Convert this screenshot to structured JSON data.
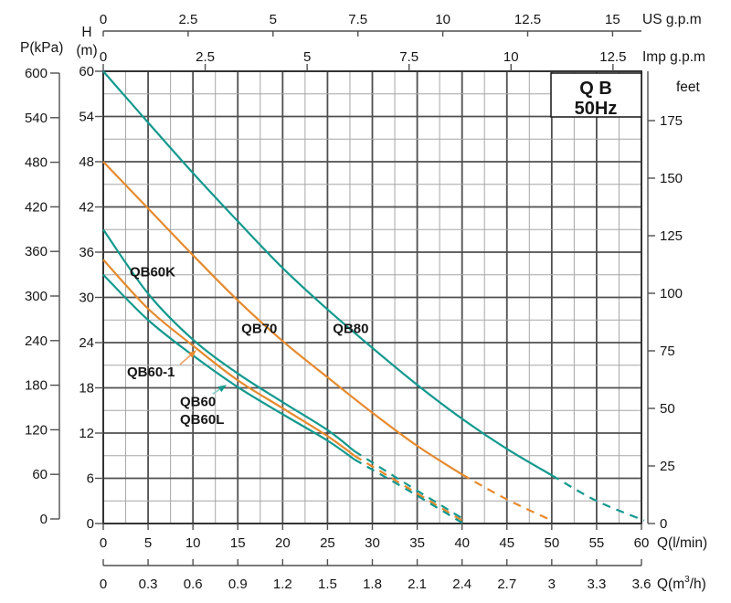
{
  "title": {
    "line1": "Q B",
    "line2": "50Hz"
  },
  "axes": {
    "us_gpm": {
      "title": "US g.p.m",
      "ticks": [
        0,
        2.5,
        5,
        7.5,
        10,
        12.5,
        15
      ]
    },
    "imp_gpm": {
      "title": "Imp g.p.m",
      "ticks": [
        0,
        2.5,
        5,
        7.5,
        10,
        12.5
      ]
    },
    "pressure_kpa": {
      "title": "P(kPa)",
      "ticks": [
        600,
        540,
        480,
        420,
        360,
        300,
        240,
        180,
        120,
        60,
        0
      ]
    },
    "head_m": {
      "title_letter": "H",
      "title_unit": "(m)",
      "ticks": [
        60,
        54,
        48,
        42,
        36,
        30,
        24,
        18,
        12,
        6,
        0
      ]
    },
    "feet": {
      "title": "feet",
      "ticks": [
        175,
        150,
        125,
        100,
        75,
        50,
        25,
        0
      ]
    },
    "flow_lmin": {
      "title": "Q(l/min)",
      "ticks": [
        0,
        5,
        10,
        15,
        20,
        25,
        30,
        35,
        40,
        45,
        50,
        55,
        60
      ]
    },
    "flow_m3h": {
      "title_parts": [
        "Q(m",
        "3",
        "/h)"
      ],
      "ticks": [
        "0",
        "0.3",
        "0.6",
        "0.9",
        "1.2",
        "1.5",
        "1.8",
        "2.1",
        "2.4",
        "2.7",
        "3",
        "3.3",
        "3.6"
      ]
    }
  },
  "chart_data": {
    "type": "line",
    "title": "QB series pump curves, 50Hz",
    "xlabel": "Q (l/min)",
    "ylabel": "H (m)",
    "x_range": [
      0,
      60
    ],
    "y_range": [
      0,
      60
    ],
    "grid": {
      "x_minor": 2.5,
      "x_major": 5,
      "y_minor": 3,
      "y_major": 6
    },
    "colors": {
      "teal": "#13998E",
      "orange": "#E68A2D",
      "grid_major": "#4F4F4F",
      "grid_minor": "#A6A6A6",
      "text": "#151515"
    },
    "unit_conversions": {
      "us_gpm_to_lmin": 3.7854,
      "imp_gpm_to_lmin": 4.5461,
      "m3h_to_lmin": 16.6667
    },
    "series": [
      {
        "name": "QB80",
        "color": "#13998E",
        "solid": [
          [
            0,
            60
          ],
          [
            5,
            53.2
          ],
          [
            10,
            46.5
          ],
          [
            15,
            40.1
          ],
          [
            20,
            33.9
          ],
          [
            25,
            28.4
          ],
          [
            30,
            23.3
          ],
          [
            35,
            18.4
          ],
          [
            40,
            13.9
          ],
          [
            45,
            9.9
          ],
          [
            50,
            6.4
          ]
        ],
        "dashed": [
          [
            50,
            6.4
          ],
          [
            55,
            3.0
          ],
          [
            60.3,
            0.4
          ]
        ]
      },
      {
        "name": "QB70",
        "color": "#E68A2D",
        "solid": [
          [
            0,
            48
          ],
          [
            5,
            41.8
          ],
          [
            10,
            35.6
          ],
          [
            15,
            29.6
          ],
          [
            20,
            24.2
          ],
          [
            25,
            19.4
          ],
          [
            30,
            14.7
          ],
          [
            35,
            10.3
          ],
          [
            40,
            6.5
          ]
        ],
        "dashed": [
          [
            40,
            6.5
          ],
          [
            45,
            3.2
          ],
          [
            50,
            0.4
          ]
        ]
      },
      {
        "name": "QB60K",
        "color": "#13998E",
        "solid": [
          [
            0,
            39
          ],
          [
            5,
            30.5
          ],
          [
            10,
            24.4
          ],
          [
            15,
            19.9
          ],
          [
            20,
            16.1
          ],
          [
            25,
            12.4
          ],
          [
            28,
            9.6
          ]
        ],
        "dashed": [
          [
            28,
            9.6
          ],
          [
            34,
            5.1
          ],
          [
            40,
            0.7
          ]
        ]
      },
      {
        "name": "QB60-1",
        "color": "#E68A2D",
        "solid": [
          [
            0,
            35
          ],
          [
            5,
            28.5
          ],
          [
            10,
            23.6
          ],
          [
            15,
            19.0
          ],
          [
            20,
            15.3
          ],
          [
            25,
            11.6
          ],
          [
            28,
            9.0
          ]
        ],
        "dashed": [
          [
            28,
            9.0
          ],
          [
            34,
            4.7
          ],
          [
            40,
            0.4
          ]
        ]
      },
      {
        "name": "QB60 / QB60L",
        "color": "#13998E",
        "solid": [
          [
            0,
            33
          ],
          [
            5,
            27.0
          ],
          [
            10,
            22.3
          ],
          [
            15,
            18.1
          ],
          [
            20,
            14.5
          ],
          [
            25,
            11.0
          ],
          [
            28,
            8.5
          ]
        ],
        "dashed": [
          [
            28,
            8.5
          ],
          [
            34,
            4.4
          ],
          [
            40,
            0.1
          ]
        ]
      }
    ],
    "curve_labels": [
      {
        "text": "QB60K",
        "q": 2.95,
        "h": 32.8
      },
      {
        "text": "QB70",
        "q": 15.4,
        "h": 25.3
      },
      {
        "text": "QB80",
        "q": 25.6,
        "h": 25.3
      },
      {
        "text": "QB60-1",
        "q": 2.65,
        "h": 19.5
      },
      {
        "text": "QB60",
        "q": 8.56,
        "h": 15.6
      },
      {
        "text": "QB60L",
        "q": 8.56,
        "h": 13.2
      }
    ],
    "annotations": {
      "arrows": [
        {
          "from": [
            8.56,
            21.1
          ],
          "to": [
            10.39,
            23.0
          ],
          "line_color": "#EBA771",
          "head_color": "#E68A2D"
        },
        {
          "from": [
            12.2,
            17.2
          ],
          "to": [
            13.75,
            18.4
          ],
          "line_color": "#8FD0C9",
          "head_color": "#13998E"
        }
      ]
    },
    "legend_position": "labels-on-plot"
  }
}
